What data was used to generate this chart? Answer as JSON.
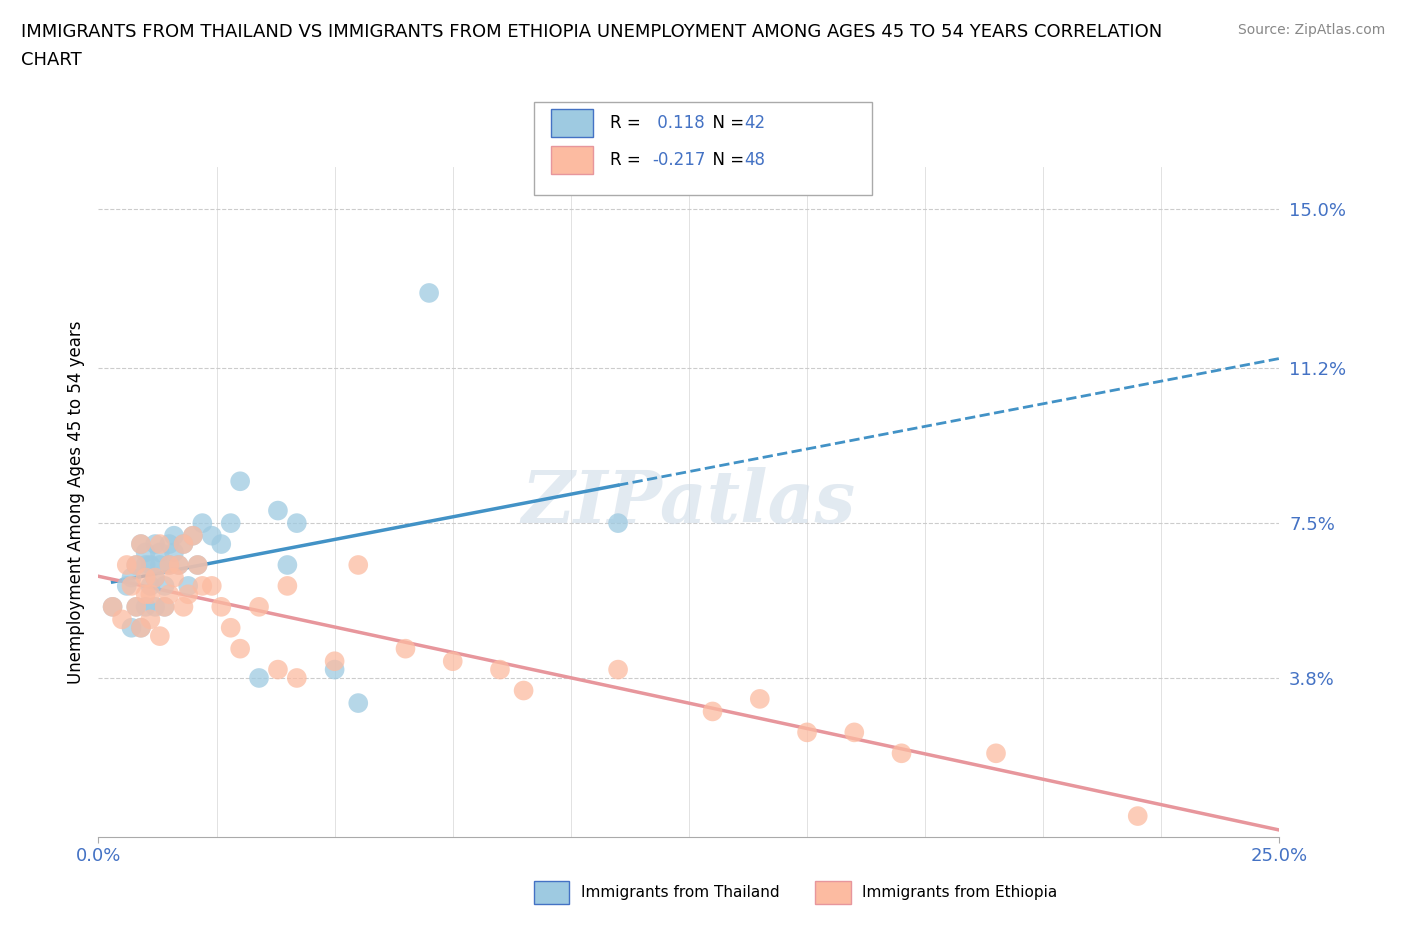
{
  "title_line1": "IMMIGRANTS FROM THAILAND VS IMMIGRANTS FROM ETHIOPIA UNEMPLOYMENT AMONG AGES 45 TO 54 YEARS CORRELATION",
  "title_line2": "CHART",
  "source_text": "Source: ZipAtlas.com",
  "ylabel": "Unemployment Among Ages 45 to 54 years",
  "xlim": [
    0.0,
    0.25
  ],
  "ylim": [
    0.0,
    0.16
  ],
  "y_ticks": [
    0.038,
    0.075,
    0.112,
    0.15
  ],
  "y_tick_labels": [
    "3.8%",
    "7.5%",
    "11.2%",
    "15.0%"
  ],
  "x_tick_labels": [
    "0.0%",
    "25.0%"
  ],
  "color_thailand": "#9ecae1",
  "color_ethiopia": "#fcbba1",
  "color_thailand_line": "#4292c6",
  "color_ethiopia_line": "#e7969c",
  "r_thailand": 0.118,
  "n_thailand": 42,
  "r_ethiopia": -0.217,
  "n_ethiopia": 48,
  "watermark": "ZIPatlas",
  "thailand_x": [
    0.003,
    0.006,
    0.007,
    0.007,
    0.008,
    0.008,
    0.009,
    0.009,
    0.01,
    0.01,
    0.01,
    0.011,
    0.011,
    0.012,
    0.012,
    0.012,
    0.013,
    0.013,
    0.014,
    0.014,
    0.015,
    0.015,
    0.016,
    0.016,
    0.017,
    0.018,
    0.019,
    0.02,
    0.021,
    0.022,
    0.024,
    0.026,
    0.028,
    0.03,
    0.034,
    0.038,
    0.04,
    0.042,
    0.05,
    0.055,
    0.07,
    0.11
  ],
  "thailand_y": [
    0.055,
    0.06,
    0.05,
    0.062,
    0.055,
    0.065,
    0.07,
    0.05,
    0.065,
    0.055,
    0.068,
    0.06,
    0.065,
    0.055,
    0.07,
    0.062,
    0.068,
    0.065,
    0.055,
    0.06,
    0.065,
    0.07,
    0.068,
    0.072,
    0.065,
    0.07,
    0.06,
    0.072,
    0.065,
    0.075,
    0.072,
    0.07,
    0.075,
    0.085,
    0.038,
    0.078,
    0.065,
    0.075,
    0.04,
    0.032,
    0.13,
    0.075
  ],
  "ethiopia_x": [
    0.003,
    0.005,
    0.006,
    0.007,
    0.008,
    0.008,
    0.009,
    0.009,
    0.01,
    0.01,
    0.011,
    0.011,
    0.012,
    0.013,
    0.013,
    0.014,
    0.015,
    0.015,
    0.016,
    0.017,
    0.018,
    0.018,
    0.019,
    0.02,
    0.021,
    0.022,
    0.024,
    0.026,
    0.028,
    0.03,
    0.034,
    0.038,
    0.04,
    0.042,
    0.05,
    0.055,
    0.065,
    0.075,
    0.085,
    0.09,
    0.11,
    0.13,
    0.15,
    0.17,
    0.19,
    0.22,
    0.14,
    0.16
  ],
  "ethiopia_y": [
    0.055,
    0.052,
    0.065,
    0.06,
    0.055,
    0.065,
    0.07,
    0.05,
    0.058,
    0.062,
    0.052,
    0.058,
    0.062,
    0.048,
    0.07,
    0.055,
    0.065,
    0.058,
    0.062,
    0.065,
    0.07,
    0.055,
    0.058,
    0.072,
    0.065,
    0.06,
    0.06,
    0.055,
    0.05,
    0.045,
    0.055,
    0.04,
    0.06,
    0.038,
    0.042,
    0.065,
    0.045,
    0.042,
    0.04,
    0.035,
    0.04,
    0.03,
    0.025,
    0.02,
    0.02,
    0.005,
    0.033,
    0.025
  ]
}
